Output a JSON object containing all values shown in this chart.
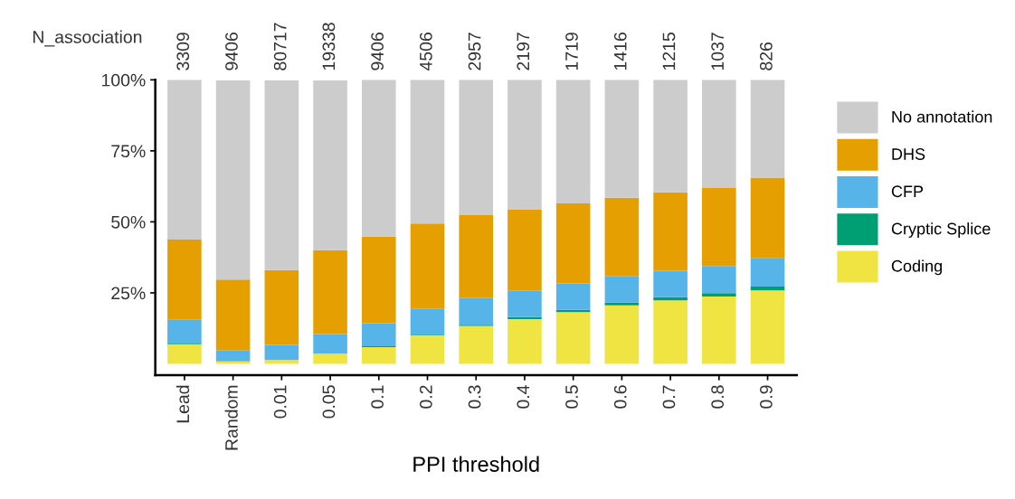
{
  "chart_data": {
    "type": "bar",
    "stacked": true,
    "xlabel": "PPI threshold",
    "categories": [
      "Lead",
      "Random",
      "0.01",
      "0.05",
      "0.1",
      "0.2",
      "0.3",
      "0.4",
      "0.5",
      "0.6",
      "0.7",
      "0.8",
      "0.9"
    ],
    "series": [
      {
        "name": "Coding",
        "color": "#f0e442",
        "values": [
          6.9,
          0.9,
          1.4,
          3.6,
          5.9,
          10.0,
          13.4,
          15.8,
          18.2,
          20.6,
          22.4,
          23.7,
          25.9
        ]
      },
      {
        "name": "Cryptic Splice",
        "color": "#009e73",
        "values": [
          0.3,
          null,
          null,
          null,
          0.3,
          0.3,
          0.4,
          0.7,
          0.8,
          1.0,
          1.1,
          1.2,
          1.3
        ]
      },
      {
        "name": "CFP",
        "color": "#56b4e9",
        "values": [
          8.3,
          4.0,
          5.3,
          6.9,
          8.1,
          9.2,
          9.4,
          9.2,
          9.3,
          9.2,
          9.3,
          9.6,
          10.1
        ]
      },
      {
        "name": "DHS",
        "color": "#e69f00",
        "values": [
          28.3,
          24.8,
          26.3,
          29.5,
          30.5,
          29.9,
          29.2,
          28.7,
          28.2,
          27.7,
          27.6,
          27.4,
          28.3
        ]
      },
      {
        "name": "No annotation",
        "color": "#cccccc",
        "values": [
          56.2,
          70.2,
          66.9,
          59.8,
          55.2,
          50.6,
          47.6,
          45.6,
          43.5,
          41.5,
          39.6,
          38.1,
          34.4
        ]
      }
    ],
    "ylim": [
      -4,
      100
    ],
    "yticks": [
      {
        "value": 25,
        "label": "25%"
      },
      {
        "value": 50,
        "label": "50%"
      },
      {
        "value": 75,
        "label": "75%"
      },
      {
        "value": 100,
        "label": "100%"
      }
    ],
    "grid": false,
    "legend": "right",
    "annotations": [
      "N_association",
      "3309",
      "9406",
      "80717",
      "19338",
      "9406",
      "4506",
      "2957",
      "2197",
      "1719",
      "1416",
      "1215",
      "1037",
      "826"
    ]
  }
}
